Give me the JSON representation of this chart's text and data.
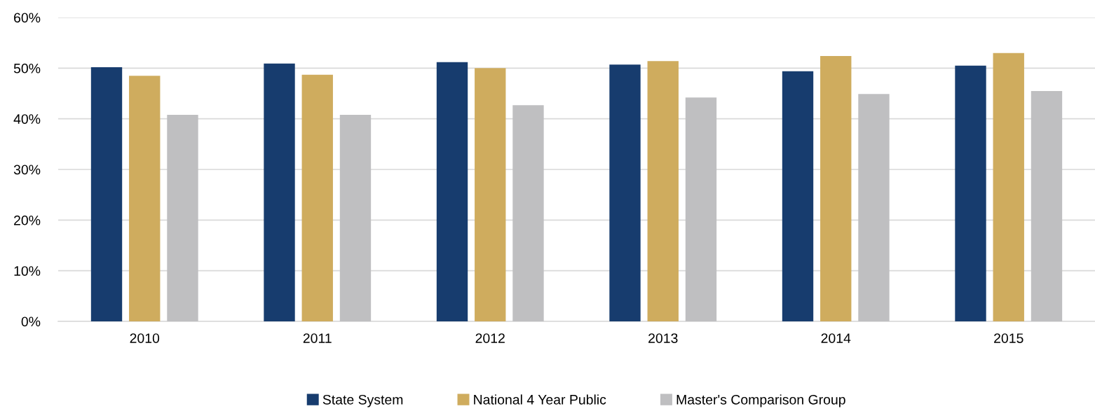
{
  "chart_data": {
    "type": "bar",
    "categories": [
      "2010",
      "2011",
      "2012",
      "2013",
      "2014",
      "2015"
    ],
    "series": [
      {
        "name": "State System",
        "color": "#173c6e",
        "values": [
          50.2,
          50.9,
          51.2,
          50.7,
          49.4,
          50.5
        ]
      },
      {
        "name": "National 4 Year Public",
        "color": "#cfac5e",
        "values": [
          48.5,
          48.7,
          50.0,
          51.4,
          52.4,
          53.0
        ]
      },
      {
        "name": "Master's Comparison Group",
        "color": "#bfbfc1",
        "values": [
          40.8,
          40.8,
          42.7,
          44.2,
          44.9,
          45.5
        ]
      }
    ],
    "ylim": [
      0,
      60
    ],
    "yticks": [
      {
        "value": 0,
        "label": "0%"
      },
      {
        "value": 10,
        "label": "10%"
      },
      {
        "value": 20,
        "label": "20%"
      },
      {
        "value": 30,
        "label": "30%"
      },
      {
        "value": 40,
        "label": "40%"
      },
      {
        "value": 50,
        "label": "50%"
      },
      {
        "value": 60,
        "label": "60%"
      }
    ],
    "grid": "y",
    "legend": "bottom"
  }
}
